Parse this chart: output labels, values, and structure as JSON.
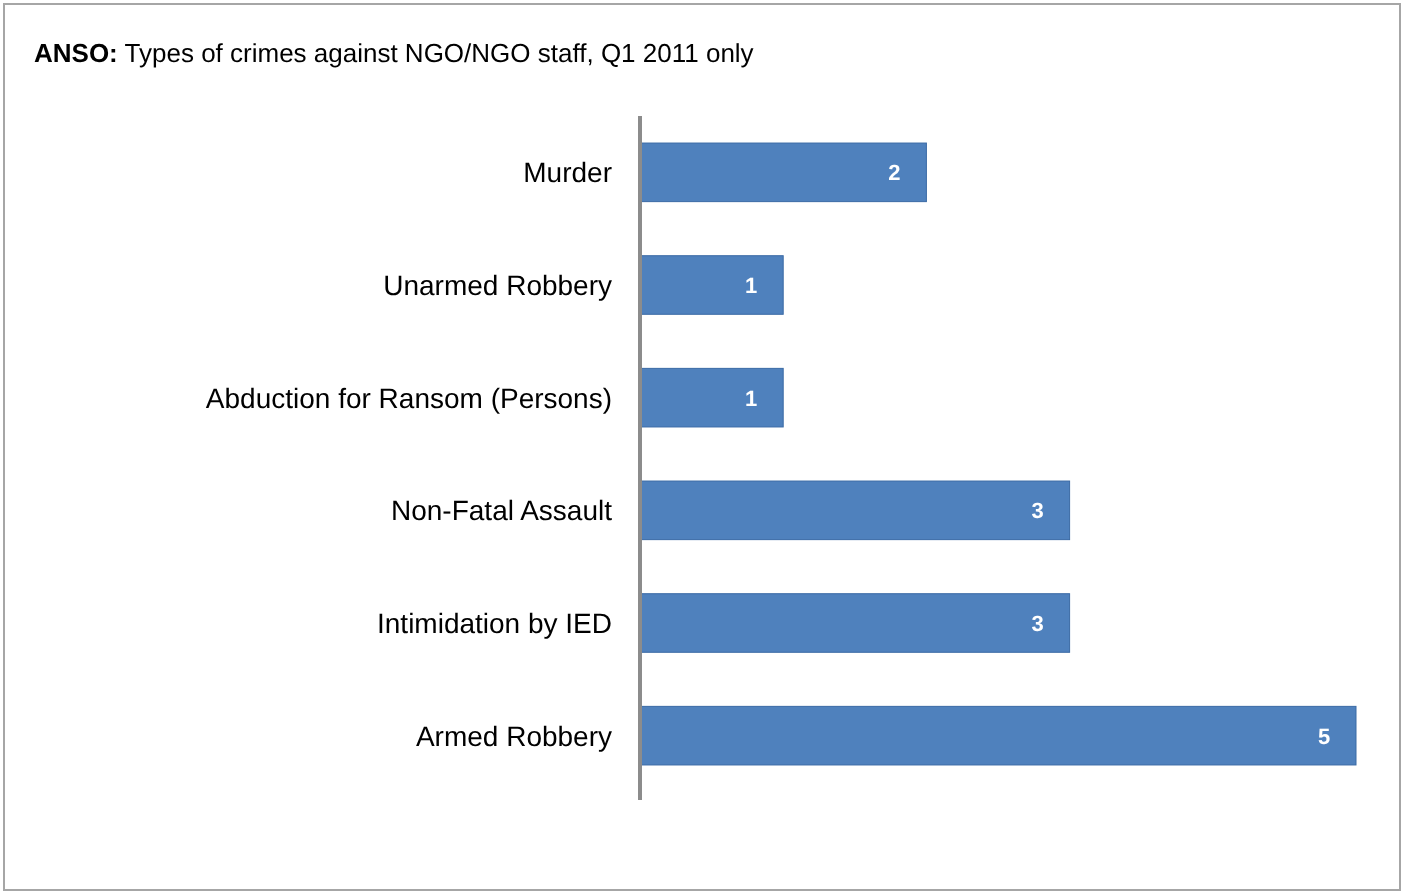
{
  "chart_data": {
    "type": "bar",
    "orientation": "horizontal",
    "title": "ANSO: Types of crimes against NGO/NGO staff, Q1 2011 only",
    "categories": [
      "Murder",
      "Unarmed Robbery",
      "Abduction for Ransom (Persons)",
      "Non-Fatal Assault",
      "Intimidation by IED",
      "Armed Robbery"
    ],
    "values": [
      2,
      1,
      1,
      3,
      3,
      5
    ],
    "color": "#4f81bd",
    "data_labels": true
  }
}
